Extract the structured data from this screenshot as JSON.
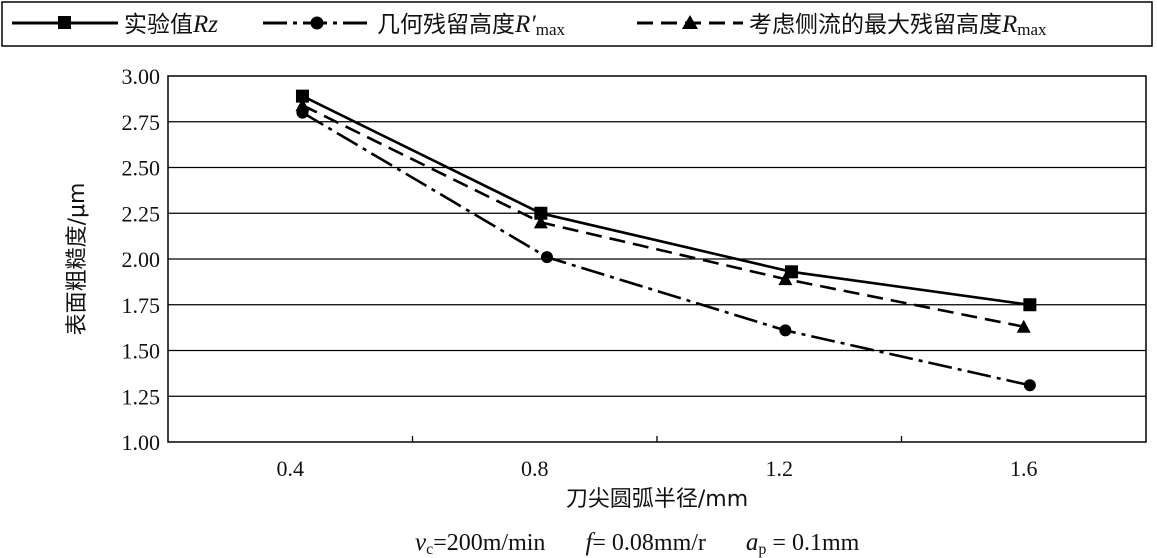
{
  "legend": {
    "items": [
      {
        "label": "实验值",
        "symbol": "Rz",
        "symbol_main": "R",
        "symbol_rest": "z",
        "sub": "",
        "marker": "square",
        "dash": "solid"
      },
      {
        "label": "几何残留高度",
        "symbol": "R′max",
        "symbol_main": "R′",
        "symbol_rest": "",
        "sub": "max",
        "marker": "circle",
        "dash": "dashdot"
      },
      {
        "label": "考虑侧流的最大残留高度",
        "symbol": "Rmax",
        "symbol_main": "R",
        "symbol_rest": "",
        "sub": "max",
        "marker": "triangle",
        "dash": "dashed"
      }
    ]
  },
  "chart_data": {
    "type": "line",
    "ylabel": "表面粗糙度/μm",
    "xlabel": "刀尖圆弧半径/mm",
    "ylim": [
      1.0,
      3.0
    ],
    "yticks": [
      "1.00",
      "1.25",
      "1.50",
      "1.75",
      "2.00",
      "2.25",
      "2.50",
      "2.75",
      "3.00"
    ],
    "xlim": [
      0.2,
      1.8
    ],
    "xticks": [
      "0.4",
      "0.8",
      "1.2",
      "1.6"
    ],
    "grid": "horizontal",
    "series": [
      {
        "name": "实验值Rz",
        "marker": "square",
        "dash": "solid",
        "points": [
          [
            0.42,
            2.89
          ],
          [
            0.81,
            2.25
          ],
          [
            1.22,
            1.93
          ],
          [
            1.61,
            1.75
          ]
        ]
      },
      {
        "name": "几何残留高度R′max",
        "marker": "circle",
        "dash": "dashdot",
        "points": [
          [
            0.42,
            2.8
          ],
          [
            0.82,
            2.01
          ],
          [
            1.21,
            1.61
          ],
          [
            1.61,
            1.31
          ]
        ]
      },
      {
        "name": "考虑侧流的最大残留高度Rmax",
        "marker": "triangle",
        "dash": "dashed",
        "points": [
          [
            0.42,
            2.84
          ],
          [
            0.81,
            2.2
          ],
          [
            1.21,
            1.89
          ],
          [
            1.6,
            1.63
          ]
        ]
      }
    ]
  },
  "conditions": {
    "vc": {
      "sym": "v",
      "sub": "c",
      "value": "=200m/min"
    },
    "f": {
      "sym": "f",
      "value": "= 0.08mm/r"
    },
    "ap": {
      "sym": "a",
      "sub": "p",
      "value": " = 0.1mm"
    }
  }
}
